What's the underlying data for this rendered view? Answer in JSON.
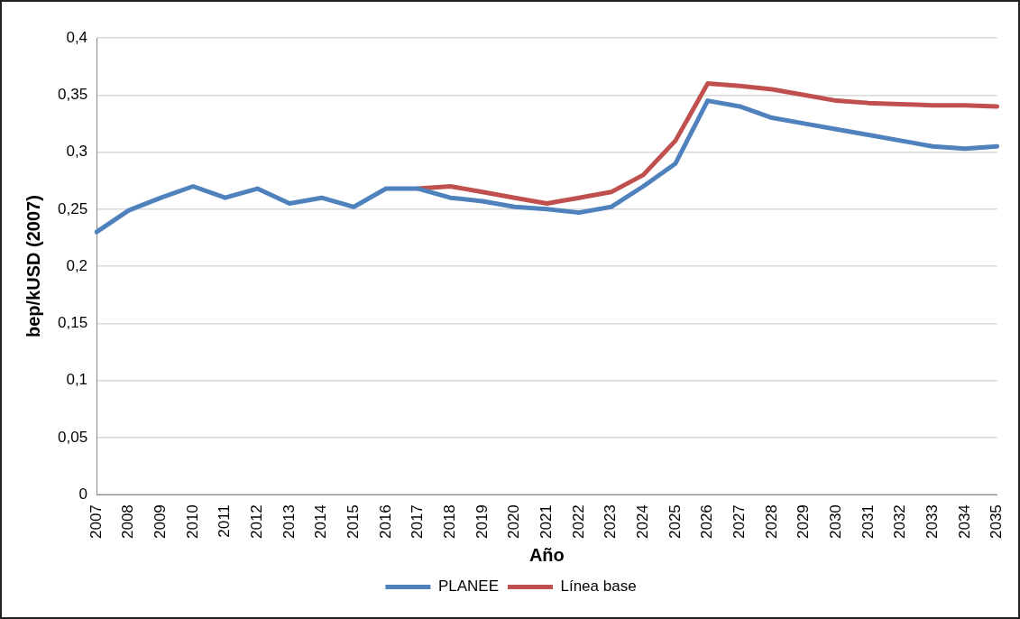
{
  "chart_data": {
    "type": "line",
    "xlabel": "Año",
    "ylabel": "bep/kUSD (2007)",
    "categories": [
      "2007",
      "2008",
      "2009",
      "2010",
      "2011",
      "2012",
      "2013",
      "2014",
      "2015",
      "2016",
      "2017",
      "2018",
      "2019",
      "2020",
      "2021",
      "2022",
      "2023",
      "2024",
      "2025",
      "2026",
      "2027",
      "2028",
      "2029",
      "2030",
      "2031",
      "2032",
      "2033",
      "2034",
      "2035"
    ],
    "series": [
      {
        "name": "PLANEE",
        "color": "#4f81bd",
        "values": [
          0.23,
          0.249,
          0.26,
          0.27,
          0.26,
          0.268,
          0.255,
          0.26,
          0.252,
          0.268,
          0.268,
          0.26,
          0.257,
          0.252,
          0.25,
          0.247,
          0.252,
          0.27,
          0.29,
          0.345,
          0.34,
          0.33,
          0.325,
          0.32,
          0.315,
          0.31,
          0.305,
          0.303,
          0.305
        ]
      },
      {
        "name": "Línea base",
        "color": "#c0504d",
        "values": [
          null,
          null,
          null,
          null,
          null,
          null,
          null,
          null,
          null,
          null,
          0.268,
          0.27,
          0.265,
          0.26,
          0.255,
          0.26,
          0.265,
          0.28,
          0.31,
          0.36,
          0.358,
          0.355,
          0.35,
          0.345,
          0.343,
          0.342,
          0.341,
          0.341,
          0.34
        ]
      }
    ],
    "ylim": [
      0,
      0.4
    ],
    "yticks": [
      {
        "value": 0,
        "label": "0"
      },
      {
        "value": 0.05,
        "label": "0,05"
      },
      {
        "value": 0.1,
        "label": "0,1"
      },
      {
        "value": 0.15,
        "label": "0,15"
      },
      {
        "value": 0.2,
        "label": "0,2"
      },
      {
        "value": 0.25,
        "label": "0,25"
      },
      {
        "value": 0.3,
        "label": "0,3"
      },
      {
        "value": 0.35,
        "label": "0,35"
      },
      {
        "value": 0.4,
        "label": "0,4"
      }
    ],
    "grid": "y",
    "legend": "bottom",
    "marker": "none",
    "line_style": "solid"
  }
}
